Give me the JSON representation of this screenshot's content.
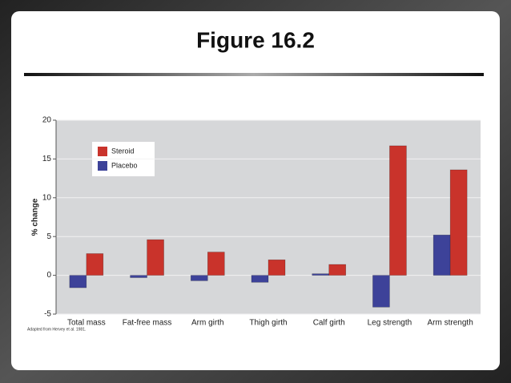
{
  "chart_data": {
    "type": "bar",
    "title": "Figure 16.2",
    "y_label": "% change",
    "source": "Adapted from Hervey et al. 1981.",
    "categories": [
      "Total mass",
      "Fat-free mass",
      "Arm girth",
      "Thigh girth",
      "Calf girth",
      "Leg strength",
      "Arm strength"
    ],
    "series": [
      {
        "name": "Placebo",
        "color": "#3d4299",
        "values": [
          -1.6,
          -0.3,
          -0.7,
          -0.9,
          0.2,
          -4.1,
          5.2
        ]
      },
      {
        "name": "Steroid",
        "color": "#c9332b",
        "values": [
          2.8,
          4.6,
          3.0,
          2.0,
          1.4,
          16.7,
          13.6
        ]
      }
    ],
    "legend_order": [
      1,
      0
    ],
    "ylim": [
      -5,
      20
    ],
    "yticks": [
      -5,
      0,
      5,
      10,
      15,
      20
    ],
    "grid": true
  }
}
